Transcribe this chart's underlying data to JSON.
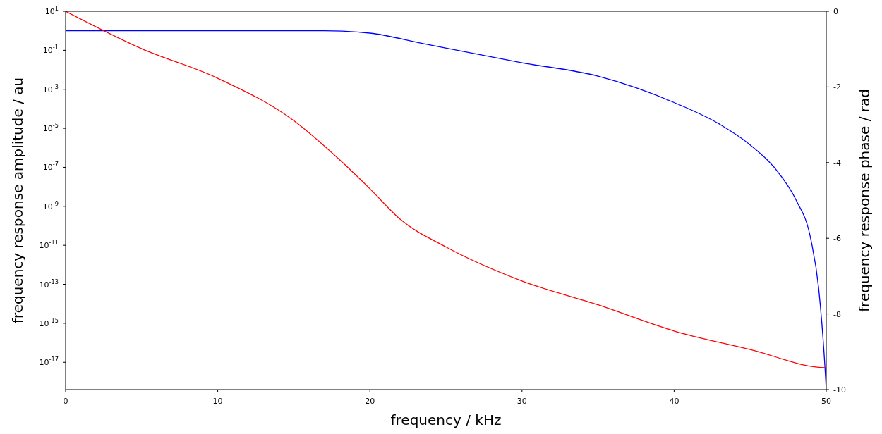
{
  "chart_data": {
    "type": "line",
    "xlabel": "frequency / kHz",
    "ylabel": "frequency response amplitude / au",
    "y2label": "frequency response phase / rad",
    "log": "y",
    "grid": false,
    "legend": false,
    "xlim": [
      0,
      50
    ],
    "xticks": [
      0,
      10,
      20,
      30,
      40,
      50
    ],
    "ylim": [
      3.98e-19,
      10
    ],
    "yticks": [
      {
        "value": 10,
        "label": "10$^{1}$"
      },
      {
        "value": 0.1,
        "label": "10$^{-1}$"
      },
      {
        "value": 0.001,
        "label": "10$^{-3}$"
      },
      {
        "value": 1e-05,
        "label": "10$^{-5}$"
      },
      {
        "value": 1e-07,
        "label": "10$^{-7}$"
      },
      {
        "value": 1e-09,
        "label": "10$^{-9}$"
      },
      {
        "value": 1e-11,
        "label": "10$^{-11}$"
      },
      {
        "value": 1e-13,
        "label": "10$^{-13}$"
      },
      {
        "value": 1e-15,
        "label": "10$^{-15}$"
      },
      {
        "value": 1e-17,
        "label": "10$^{-17}$"
      }
    ],
    "y2lim": [
      -10,
      0
    ],
    "y2ticks": [
      0,
      -2,
      -4,
      -6,
      -8,
      -10
    ],
    "series": [
      {
        "color": "#0000ff",
        "x": [
          0,
          5,
          10,
          15,
          17,
          20,
          23.5,
          30,
          35,
          40,
          43,
          45,
          47,
          48,
          49,
          49.5,
          49.9,
          50
        ],
        "values": [
          1,
          1,
          1,
          1,
          1,
          0.76,
          0.22,
          0.023,
          0.0047,
          0.00021,
          1.6e-05,
          1.4e-06,
          3.8e-08,
          2.2e-09,
          1.8e-11,
          6.3e-14,
          8.5e-18,
          3.98e-19
        ]
      },
      {
        "color": "#ff0000",
        "axis": "y2",
        "x": [
          0,
          5,
          10,
          15,
          18,
          20,
          22,
          25,
          30,
          35,
          40,
          45,
          50,
          50
        ],
        "values": [
          0,
          -0.99,
          -1.77,
          -2.89,
          -3.92,
          -4.69,
          -5.5,
          -6.23,
          -7.13,
          -7.76,
          -8.45,
          -8.94,
          -9.42,
          -6.32
        ]
      }
    ]
  }
}
